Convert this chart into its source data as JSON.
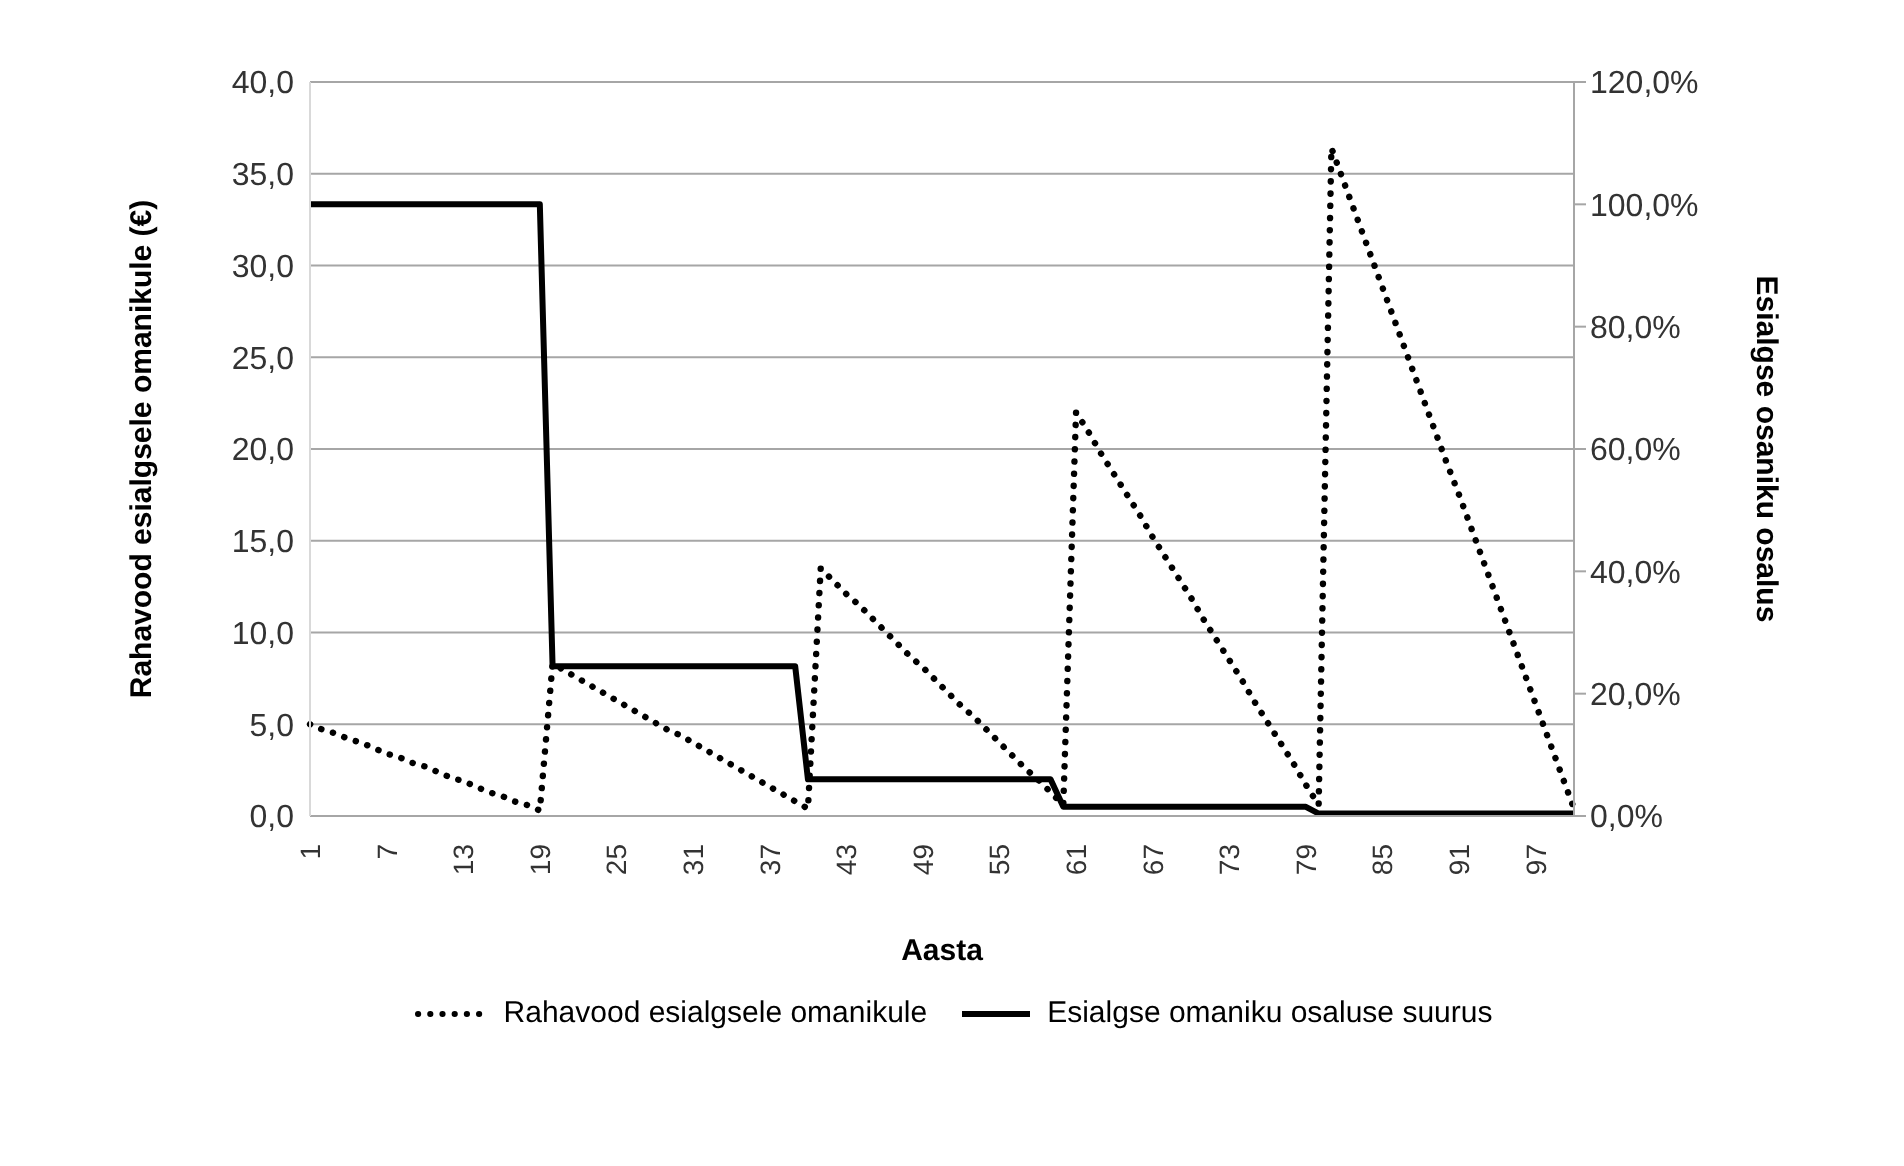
{
  "chart_data": {
    "type": "line",
    "xlabel": "Aasta",
    "ylabel": "Rahavood esialgsele omanikule (€)",
    "y2label": "Esialgse osaniku osalus",
    "categories": [
      "1",
      null,
      null,
      null,
      null,
      null,
      "7",
      null,
      null,
      null,
      null,
      null,
      "13",
      null,
      null,
      null,
      null,
      null,
      "19",
      null,
      null,
      null,
      null,
      null,
      "25",
      null,
      null,
      null,
      null,
      null,
      "31",
      null,
      null,
      null,
      null,
      null,
      "37",
      null,
      null,
      null,
      null,
      null,
      "43",
      null,
      null,
      null,
      null,
      null,
      "49",
      null,
      null,
      null,
      null,
      null,
      "55",
      null,
      null,
      null,
      null,
      null,
      "61",
      null,
      null,
      null,
      null,
      null,
      "67",
      null,
      null,
      null,
      null,
      null,
      "73",
      null,
      null,
      null,
      null,
      null,
      "79",
      null,
      null,
      null,
      null,
      null,
      "85",
      null,
      null,
      null,
      null,
      null,
      "91",
      null,
      null,
      null,
      null,
      null,
      "97",
      null,
      null,
      null
    ],
    "series": [
      {
        "name": "Rahavood esialgsele omanikule",
        "color": "#000000",
        "line_style": "dotted",
        "values": [
          5.0,
          4.7,
          4.5,
          4.2,
          4.0,
          3.7,
          3.4,
          3.2,
          2.9,
          2.7,
          2.4,
          2.1,
          1.9,
          1.6,
          1.3,
          1.1,
          0.8,
          0.6,
          0.3,
          8.3,
          7.9,
          7.5,
          7.1,
          6.7,
          6.3,
          5.9,
          5.5,
          5.1,
          4.7,
          4.4,
          4.0,
          3.6,
          3.2,
          2.8,
          2.4,
          2.0,
          1.6,
          1.2,
          0.8,
          0.4,
          13.5,
          12.8,
          12.1,
          11.5,
          10.8,
          10.1,
          9.4,
          8.7,
          8.1,
          7.4,
          6.7,
          6.0,
          5.4,
          4.7,
          4.0,
          3.3,
          2.6,
          2.0,
          1.3,
          0.6,
          22.0,
          20.9,
          19.7,
          18.6,
          17.5,
          16.4,
          15.2,
          14.1,
          13.0,
          11.9,
          10.7,
          9.6,
          8.5,
          7.4,
          6.2,
          5.1,
          4.0,
          2.9,
          1.7,
          0.6,
          36.4,
          34.5,
          32.6,
          30.7,
          28.8,
          26.9,
          25.0,
          23.1,
          21.2,
          19.3,
          17.5,
          15.6,
          13.7,
          11.8,
          9.9,
          8.0,
          6.1,
          4.2,
          2.3,
          0.4
        ]
      },
      {
        "name": "Esialgse omaniku osaluse suurus",
        "color": "#000000",
        "line_style": "solid",
        "axis": "y2",
        "values": [
          100,
          100,
          100,
          100,
          100,
          100,
          100,
          100,
          100,
          100,
          100,
          100,
          100,
          100,
          100,
          100,
          100,
          100,
          100,
          24.5,
          24.5,
          24.5,
          24.5,
          24.5,
          24.5,
          24.5,
          24.5,
          24.5,
          24.5,
          24.5,
          24.5,
          24.5,
          24.5,
          24.5,
          24.5,
          24.5,
          24.5,
          24.5,
          24.5,
          6.0,
          6.0,
          6.0,
          6.0,
          6.0,
          6.0,
          6.0,
          6.0,
          6.0,
          6.0,
          6.0,
          6.0,
          6.0,
          6.0,
          6.0,
          6.0,
          6.0,
          6.0,
          6.0,
          6.0,
          1.5,
          1.5,
          1.5,
          1.5,
          1.5,
          1.5,
          1.5,
          1.5,
          1.5,
          1.5,
          1.5,
          1.5,
          1.5,
          1.5,
          1.5,
          1.5,
          1.5,
          1.5,
          1.5,
          1.5,
          0.4,
          0.4,
          0.4,
          0.4,
          0.4,
          0.4,
          0.4,
          0.4,
          0.4,
          0.4,
          0.4,
          0.4,
          0.4,
          0.4,
          0.4,
          0.4,
          0.4,
          0.4,
          0.4,
          0.4,
          0.4
        ]
      }
    ],
    "ylim": [
      0,
      40
    ],
    "yticks": [
      {
        "value": 0,
        "label": "0,0"
      },
      {
        "value": 5,
        "label": "5,0"
      },
      {
        "value": 10,
        "label": "10,0"
      },
      {
        "value": 15,
        "label": "15,0"
      },
      {
        "value": 20,
        "label": "20,0"
      },
      {
        "value": 25,
        "label": "25,0"
      },
      {
        "value": 30,
        "label": "30,0"
      },
      {
        "value": 35,
        "label": "35,0"
      },
      {
        "value": 40,
        "label": "40,0"
      }
    ],
    "y2lim": [
      0,
      120
    ],
    "y2ticks": [
      {
        "value": 0,
        "label": "0,0%"
      },
      {
        "value": 20,
        "label": "20,0%"
      },
      {
        "value": 40,
        "label": "40,0%"
      },
      {
        "value": 60,
        "label": "60,0%"
      },
      {
        "value": 80,
        "label": "80,0%"
      },
      {
        "value": 100,
        "label": "100,0%"
      },
      {
        "value": 120,
        "label": "120,0%"
      }
    ],
    "grid": "y",
    "legend": "bottom",
    "marker": "none"
  }
}
